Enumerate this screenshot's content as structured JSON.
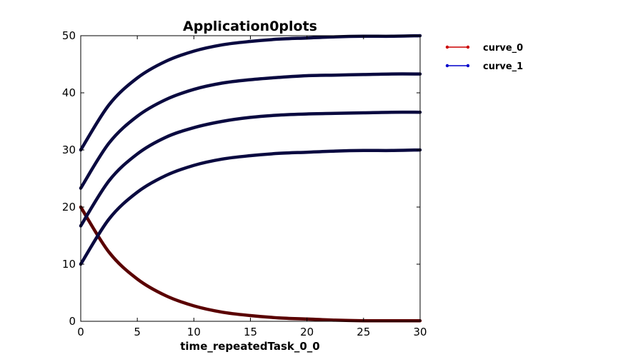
{
  "chart_data": {
    "type": "line",
    "title": "Application0plots",
    "xlabel": "time_repeatedTask_0_0",
    "ylabel": "",
    "xlim": [
      0,
      30
    ],
    "ylim": [
      0,
      50
    ],
    "xticks": [
      "0",
      "5",
      "10",
      "15",
      "20",
      "25",
      "30"
    ],
    "yticks": [
      "0",
      "10",
      "20",
      "30",
      "40",
      "50"
    ],
    "grid": false,
    "legend_position": "outside-top-right",
    "legend": [
      {
        "name": "curve_0",
        "color": "#cc0000"
      },
      {
        "name": "curve_1",
        "color": "#0000cc"
      }
    ],
    "x": [
      0,
      2.5,
      5,
      7.5,
      10,
      12.5,
      15,
      17.5,
      20,
      22.5,
      25,
      27.5,
      30
    ],
    "series": [
      {
        "legend_ref": "curve_0",
        "color": "#5a0000",
        "values": [
          20.0,
          12.1,
          7.4,
          4.5,
          2.7,
          1.6,
          1.0,
          0.6,
          0.4,
          0.2,
          0.1,
          0.1,
          0.1
        ]
      },
      {
        "legend_ref": "curve_1",
        "color": "#0a0a40",
        "values": [
          10.0,
          17.9,
          22.6,
          25.5,
          27.3,
          28.4,
          29.0,
          29.4,
          29.6,
          29.8,
          29.9,
          29.9,
          30.0
        ]
      },
      {
        "legend_ref": "curve_1",
        "color": "#0a0a40",
        "values": [
          16.7,
          24.6,
          29.3,
          32.2,
          33.9,
          35.0,
          35.7,
          36.1,
          36.3,
          36.4,
          36.5,
          36.6,
          36.6
        ]
      },
      {
        "legend_ref": "curve_1",
        "color": "#0a0a40",
        "values": [
          23.3,
          31.2,
          35.9,
          38.8,
          40.6,
          41.7,
          42.3,
          42.7,
          43.0,
          43.1,
          43.2,
          43.3,
          43.3
        ]
      },
      {
        "legend_ref": "curve_1",
        "color": "#0a0a40",
        "values": [
          30.0,
          37.9,
          42.6,
          45.5,
          47.3,
          48.4,
          49.0,
          49.4,
          49.6,
          49.8,
          49.9,
          49.9,
          50.0
        ]
      }
    ]
  }
}
